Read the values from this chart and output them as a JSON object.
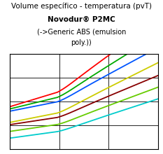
{
  "title_line1": "Volume específico - temperatura (pvT)",
  "title_line2": "Novodur® P2MC",
  "title_line3": "(->Generic ABS (emulsion",
  "title_line4": "poly.))",
  "title_fontsize": 7.5,
  "subtitle_fontsize": 7.5,
  "sub2_fontsize": 7.0,
  "background_color": "#ffffff",
  "plot_background": "#ffffff",
  "lines": [
    {
      "color": "#ff0000",
      "v0": 0.58,
      "v1": 0.98,
      "curve": 0.55
    },
    {
      "color": "#00aa00",
      "v0": 0.56,
      "v1": 0.88,
      "curve": 0.5
    },
    {
      "color": "#0055ff",
      "v0": 0.54,
      "v1": 0.8,
      "curve": 0.45
    },
    {
      "color": "#cccc00",
      "v0": 0.44,
      "v1": 0.7,
      "curve": 0.4
    },
    {
      "color": "#880000",
      "v0": 0.42,
      "v1": 0.62,
      "curve": 0.35
    },
    {
      "color": "#66cc00",
      "v0": 0.36,
      "v1": 0.55,
      "curve": 0.3
    },
    {
      "color": "#00cccc",
      "v0": 0.3,
      "v1": 0.48,
      "curve": 0.25
    }
  ],
  "grid_nx": 3,
  "grid_ny": 4,
  "figsize": [
    2.33,
    2.2
  ],
  "dpi": 100
}
